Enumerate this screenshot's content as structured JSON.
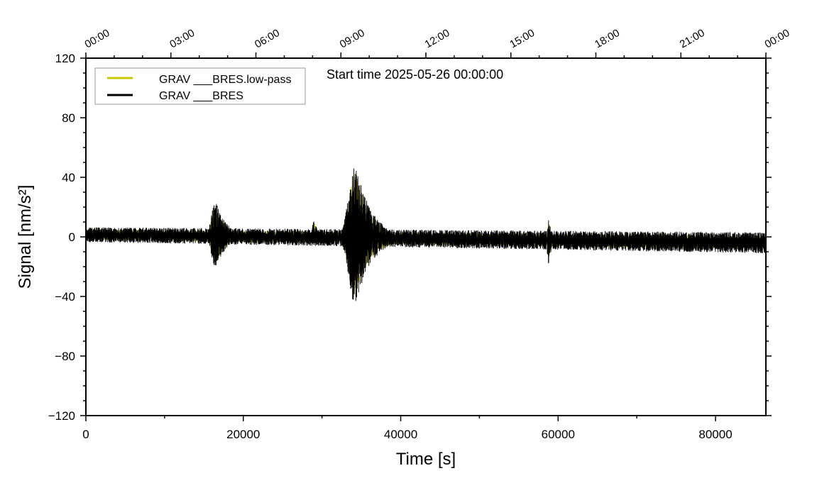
{
  "chart_data": {
    "type": "line",
    "title": "Start time 2025-05-26 00:00:00",
    "xlabel": "Time [s]",
    "ylabel": "Signal [nm/s²]",
    "xlim": [
      0,
      86400
    ],
    "ylim": [
      -120,
      120
    ],
    "x_ticks": [
      0,
      20000,
      40000,
      60000,
      80000
    ],
    "x_tick_labels": [
      "0",
      "20000",
      "40000",
      "60000",
      "80000"
    ],
    "y_ticks": [
      -120,
      -80,
      -40,
      0,
      40,
      80,
      120
    ],
    "y_tick_labels": [
      "−120",
      "−80",
      "−40",
      "0",
      "40",
      "80",
      "120"
    ],
    "top_axis_ticks_s": [
      0,
      10800,
      21600,
      32400,
      43200,
      54000,
      64800,
      75600,
      86400
    ],
    "top_axis_labels": [
      "00:00",
      "03:00",
      "06:00",
      "09:00",
      "12:00",
      "15:00",
      "18:00",
      "21:00",
      "00:00"
    ],
    "legend": {
      "placement": "top-left",
      "entries": [
        "GRAV ___BRES.low-pass",
        "GRAV ___BRES"
      ]
    },
    "series": [
      {
        "name": "GRAV ___BRES",
        "color": "#000000",
        "baseline_start": 1.5,
        "baseline_end": -4,
        "noise_amplitude": 5,
        "noise_amplitude_end": 7
      },
      {
        "name": "GRAV ___BRES.low-pass",
        "color": "#c8c800",
        "baseline_start": 1.5,
        "baseline_end": -4,
        "noise_amplitude": 3.5,
        "noise_amplitude_end": 4.5
      }
    ],
    "events": [
      {
        "time": 16500,
        "peak_max": 24,
        "peak_min": -22,
        "duration": 3000
      },
      {
        "time": 29000,
        "peak_max": 12,
        "peak_min": -6,
        "duration": 1200
      },
      {
        "time": 34200,
        "peak_max": 52,
        "peak_min": -46,
        "duration": 4500
      },
      {
        "time": 58800,
        "peak_max": 15,
        "peak_min": -17,
        "duration": 900
      }
    ]
  }
}
